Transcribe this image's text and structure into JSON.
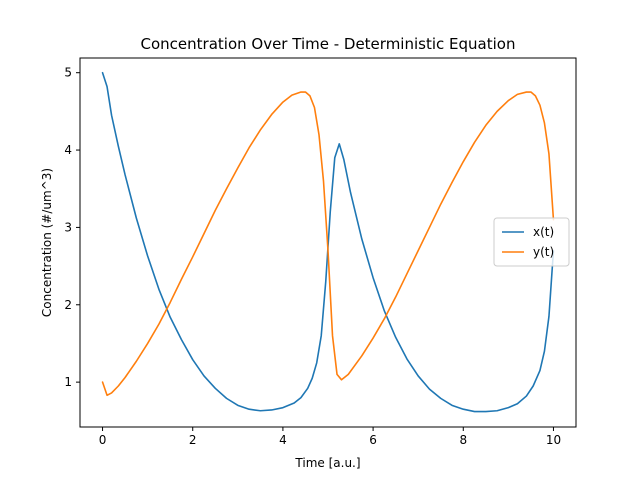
{
  "chart_data": {
    "type": "line",
    "title": "Concentration Over Time - Deterministic Equation",
    "xlabel": "Time [a.u.]",
    "ylabel": "Concentration (#/um^3)",
    "xlim": [
      -0.5,
      10.5
    ],
    "ylim": [
      0.42,
      5.19
    ],
    "xticks": [
      0,
      2,
      4,
      6,
      8,
      10
    ],
    "yticks": [
      1,
      2,
      3,
      4,
      5
    ],
    "grid": false,
    "legend": "center-right",
    "series": [
      {
        "name": "x(t)",
        "color": "#1f77b4",
        "points": [
          [
            0.0,
            5.0
          ],
          [
            0.1,
            4.82
          ],
          [
            0.2,
            4.45
          ],
          [
            0.35,
            4.05
          ],
          [
            0.5,
            3.68
          ],
          [
            0.75,
            3.12
          ],
          [
            1.0,
            2.63
          ],
          [
            1.25,
            2.2
          ],
          [
            1.5,
            1.84
          ],
          [
            1.75,
            1.55
          ],
          [
            2.0,
            1.29
          ],
          [
            2.25,
            1.08
          ],
          [
            2.5,
            0.92
          ],
          [
            2.75,
            0.79
          ],
          [
            3.0,
            0.7
          ],
          [
            3.25,
            0.65
          ],
          [
            3.5,
            0.63
          ],
          [
            3.75,
            0.64
          ],
          [
            4.0,
            0.67
          ],
          [
            4.25,
            0.73
          ],
          [
            4.4,
            0.8
          ],
          [
            4.55,
            0.92
          ],
          [
            4.65,
            1.05
          ],
          [
            4.75,
            1.25
          ],
          [
            4.85,
            1.6
          ],
          [
            4.95,
            2.3
          ],
          [
            5.05,
            3.2
          ],
          [
            5.15,
            3.9
          ],
          [
            5.25,
            4.08
          ],
          [
            5.35,
            3.88
          ],
          [
            5.5,
            3.45
          ],
          [
            5.75,
            2.85
          ],
          [
            6.0,
            2.35
          ],
          [
            6.25,
            1.92
          ],
          [
            6.5,
            1.58
          ],
          [
            6.75,
            1.3
          ],
          [
            7.0,
            1.08
          ],
          [
            7.25,
            0.91
          ],
          [
            7.5,
            0.79
          ],
          [
            7.75,
            0.7
          ],
          [
            8.0,
            0.65
          ],
          [
            8.25,
            0.62
          ],
          [
            8.5,
            0.62
          ],
          [
            8.75,
            0.63
          ],
          [
            9.0,
            0.67
          ],
          [
            9.2,
            0.72
          ],
          [
            9.4,
            0.82
          ],
          [
            9.55,
            0.95
          ],
          [
            9.7,
            1.15
          ],
          [
            9.8,
            1.4
          ],
          [
            9.9,
            1.85
          ],
          [
            10.0,
            2.7
          ]
        ]
      },
      {
        "name": "y(t)",
        "color": "#ff7f0e",
        "points": [
          [
            0.0,
            1.0
          ],
          [
            0.1,
            0.83
          ],
          [
            0.2,
            0.86
          ],
          [
            0.35,
            0.95
          ],
          [
            0.5,
            1.06
          ],
          [
            0.75,
            1.27
          ],
          [
            1.0,
            1.5
          ],
          [
            1.25,
            1.75
          ],
          [
            1.5,
            2.03
          ],
          [
            1.75,
            2.33
          ],
          [
            2.0,
            2.62
          ],
          [
            2.25,
            2.92
          ],
          [
            2.5,
            3.22
          ],
          [
            2.75,
            3.5
          ],
          [
            3.0,
            3.77
          ],
          [
            3.25,
            4.03
          ],
          [
            3.5,
            4.26
          ],
          [
            3.75,
            4.46
          ],
          [
            4.0,
            4.62
          ],
          [
            4.2,
            4.71
          ],
          [
            4.4,
            4.75
          ],
          [
            4.5,
            4.75
          ],
          [
            4.6,
            4.7
          ],
          [
            4.7,
            4.55
          ],
          [
            4.8,
            4.2
          ],
          [
            4.9,
            3.6
          ],
          [
            5.0,
            2.7
          ],
          [
            5.1,
            1.6
          ],
          [
            5.2,
            1.1
          ],
          [
            5.3,
            1.03
          ],
          [
            5.45,
            1.1
          ],
          [
            5.75,
            1.34
          ],
          [
            6.0,
            1.57
          ],
          [
            6.25,
            1.82
          ],
          [
            6.5,
            2.1
          ],
          [
            6.75,
            2.4
          ],
          [
            7.0,
            2.7
          ],
          [
            7.25,
            3.0
          ],
          [
            7.5,
            3.3
          ],
          [
            7.75,
            3.58
          ],
          [
            8.0,
            3.85
          ],
          [
            8.25,
            4.1
          ],
          [
            8.5,
            4.32
          ],
          [
            8.75,
            4.5
          ],
          [
            9.0,
            4.64
          ],
          [
            9.2,
            4.72
          ],
          [
            9.4,
            4.75
          ],
          [
            9.5,
            4.75
          ],
          [
            9.6,
            4.7
          ],
          [
            9.7,
            4.58
          ],
          [
            9.8,
            4.35
          ],
          [
            9.9,
            3.95
          ],
          [
            10.0,
            3.1
          ]
        ]
      }
    ]
  }
}
